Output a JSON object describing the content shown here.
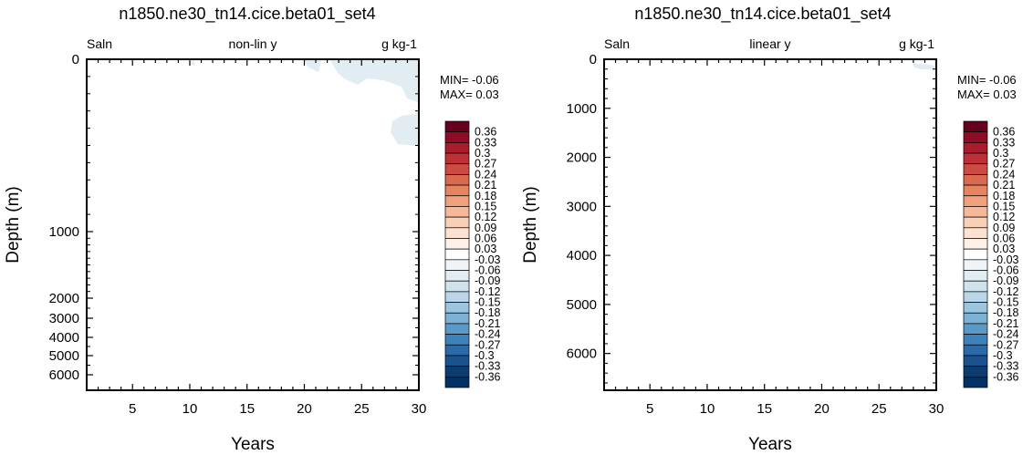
{
  "chart_data": [
    {
      "type": "heatmap",
      "title": "n1850.ne30_tn14.cice.beta01_set4",
      "left_label": "Saln",
      "center_label": "non-lin y",
      "right_label": "g kg-1",
      "xlabel": "Years",
      "ylabel": "Depth (m)",
      "x_ticks": [
        5,
        10,
        15,
        20,
        25,
        30
      ],
      "xlim": [
        1,
        30
      ],
      "y_ticks": [
        0,
        1000,
        2000,
        3000,
        4000,
        5000,
        6000
      ],
      "ylim": [
        0,
        6500
      ],
      "y_scale": "nonlinear",
      "min_label": "MIN= -0.06",
      "max_label": "MAX=  0.03"
    },
    {
      "type": "heatmap",
      "title": "n1850.ne30_tn14.cice.beta01_set4",
      "left_label": "Saln",
      "center_label": "linear y",
      "right_label": "g kg-1",
      "xlabel": "Years",
      "ylabel": "Depth (m)",
      "x_ticks": [
        5,
        10,
        15,
        20,
        25,
        30
      ],
      "xlim": [
        1,
        30
      ],
      "y_ticks": [
        0,
        1000,
        2000,
        3000,
        4000,
        5000,
        6000
      ],
      "ylim": [
        0,
        6750
      ],
      "y_scale": "linear",
      "min_label": "MIN= -0.06",
      "max_label": "MAX=  0.03"
    }
  ],
  "colorbar": {
    "labels": [
      "0.36",
      "0.33",
      "0.3",
      "0.27",
      "0.24",
      "0.21",
      "0.18",
      "0.15",
      "0.12",
      "0.09",
      "0.06",
      "0.03",
      "-0.03",
      "-0.06",
      "-0.09",
      "-0.12",
      "-0.15",
      "-0.18",
      "-0.21",
      "-0.24",
      "-0.27",
      "-0.3",
      "-0.33",
      "-0.36"
    ],
    "colors": [
      "#67001f",
      "#8e0c25",
      "#a81c2c",
      "#bd3035",
      "#cc4c44",
      "#d9694f",
      "#e5845e",
      "#f0a07a",
      "#f6b899",
      "#f9cfb6",
      "#fce2d2",
      "#fef1e8",
      "#ffffff",
      "#f0f4f8",
      "#e2ecf3",
      "#d0e2ee",
      "#bad6e8",
      "#9cc6df",
      "#7bb1d4",
      "#5b9ac8",
      "#3e82bb",
      "#2b6aa8",
      "#1a528d",
      "#0f3c6e",
      "#053061"
    ],
    "shading_color": "#e2ecf3"
  }
}
